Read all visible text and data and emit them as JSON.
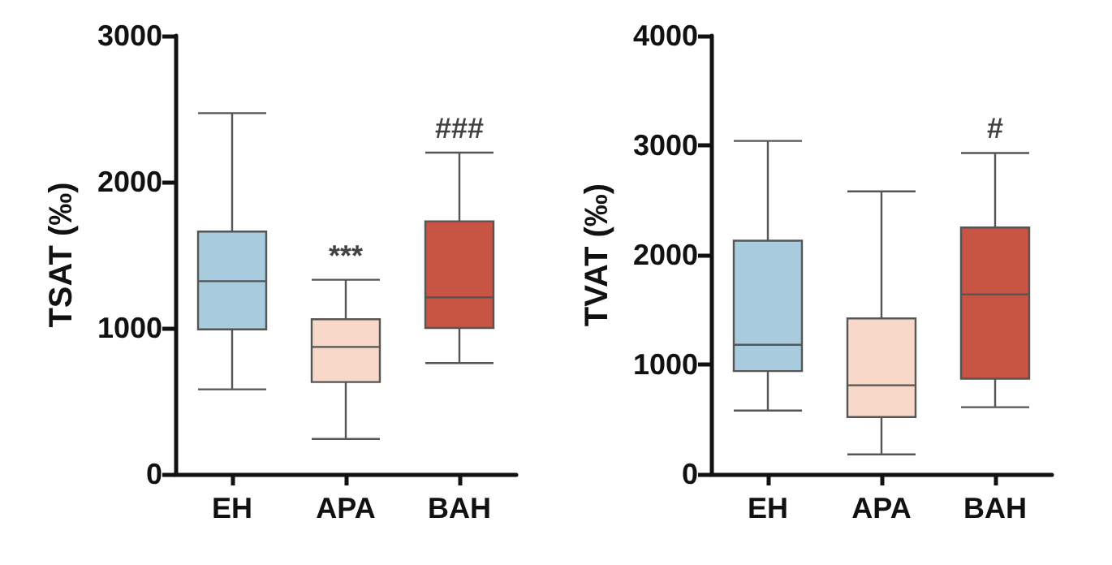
{
  "chart_data": [
    {
      "type": "box",
      "ylabel": "TSAT (‰)",
      "categories": [
        "EH",
        "APA",
        "BAH"
      ],
      "colors": [
        "#a8cbdd",
        "#f8d9c9",
        "#c85444"
      ],
      "ylim": [
        0,
        3000
      ],
      "yticks": [
        0,
        1000,
        2000,
        3000
      ],
      "grid": false,
      "boxes": [
        {
          "low": 580,
          "q1": 990,
          "median": 1320,
          "q3": 1660,
          "high": 2470
        },
        {
          "low": 240,
          "q1": 630,
          "median": 870,
          "q3": 1060,
          "high": 1330
        },
        {
          "low": 760,
          "q1": 1000,
          "median": 1210,
          "q3": 1730,
          "high": 2200
        }
      ],
      "annotations": [
        {
          "text": "***",
          "x": "APA",
          "y": 1330
        },
        {
          "text": "###",
          "x": "BAH",
          "y": 2200
        }
      ]
    },
    {
      "type": "box",
      "ylabel": "TVAT (‰)",
      "categories": [
        "EH",
        "APA",
        "BAH"
      ],
      "colors": [
        "#a8cbdd",
        "#f8d9c9",
        "#c85444"
      ],
      "ylim": [
        0,
        4000
      ],
      "yticks": [
        0,
        1000,
        2000,
        3000,
        4000
      ],
      "grid": false,
      "boxes": [
        {
          "low": 580,
          "q1": 940,
          "median": 1180,
          "q3": 2130,
          "high": 3040
        },
        {
          "low": 180,
          "q1": 520,
          "median": 810,
          "q3": 1420,
          "high": 2580
        },
        {
          "low": 610,
          "q1": 870,
          "median": 1640,
          "q3": 2250,
          "high": 2930
        }
      ],
      "annotations": [
        {
          "text": "#",
          "x": "BAH",
          "y": 2930
        }
      ]
    }
  ]
}
